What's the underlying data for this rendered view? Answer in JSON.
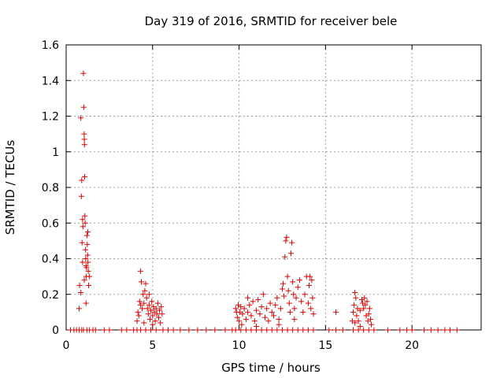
{
  "chart_data": {
    "type": "scatter",
    "title": "Day 319 of 2016, SRMTID for receiver bele",
    "xlabel": "GPS time / hours",
    "ylabel": "SRMTID / TECUs",
    "xlim": [
      0,
      24
    ],
    "ylim": [
      0,
      1.6
    ],
    "x_ticks": [
      0,
      5,
      10,
      15,
      20
    ],
    "x_tick_labels": [
      "0",
      "5",
      "10",
      "15",
      "20"
    ],
    "y_ticks": [
      0,
      0.2,
      0.4,
      0.6,
      0.8,
      1.0,
      1.2,
      1.4,
      1.6
    ],
    "y_tick_labels": [
      "0",
      "0.2",
      "0.4",
      "0.6",
      "0.8",
      "1",
      "1.2",
      "1.4",
      "1.6"
    ],
    "grid": true,
    "marker": "+",
    "color": "#e00000",
    "series": [
      {
        "name": "SRMTID",
        "points": [
          [
            0.25,
            0
          ],
          [
            0.45,
            0
          ],
          [
            0.6,
            0
          ],
          [
            0.75,
            0
          ],
          [
            0.9,
            0
          ],
          [
            1.0,
            0
          ],
          [
            1.2,
            0
          ],
          [
            1.35,
            0
          ],
          [
            1.55,
            0
          ],
          [
            1.7,
            0
          ],
          [
            2.2,
            0
          ],
          [
            2.5,
            0
          ],
          [
            3.2,
            0
          ],
          [
            3.5,
            0
          ],
          [
            3.9,
            0
          ],
          [
            4.1,
            0
          ],
          [
            4.3,
            0
          ],
          [
            4.6,
            0
          ],
          [
            4.9,
            0
          ],
          [
            5.2,
            0
          ],
          [
            5.6,
            0
          ],
          [
            5.9,
            0
          ],
          [
            6.2,
            0
          ],
          [
            6.6,
            0
          ],
          [
            7.1,
            0
          ],
          [
            7.6,
            0
          ],
          [
            8.1,
            0
          ],
          [
            8.6,
            0
          ],
          [
            9.2,
            0
          ],
          [
            9.6,
            0
          ],
          [
            9.8,
            0
          ],
          [
            10.1,
            0
          ],
          [
            10.4,
            0
          ],
          [
            10.7,
            0
          ],
          [
            11.0,
            0
          ],
          [
            11.3,
            0
          ],
          [
            11.6,
            0
          ],
          [
            11.9,
            0
          ],
          [
            12.2,
            0
          ],
          [
            12.5,
            0
          ],
          [
            12.8,
            0
          ],
          [
            13.1,
            0
          ],
          [
            13.4,
            0
          ],
          [
            13.7,
            0
          ],
          [
            14.0,
            0
          ],
          [
            14.3,
            0
          ],
          [
            15.2,
            0
          ],
          [
            15.6,
            0
          ],
          [
            16.0,
            0
          ],
          [
            16.6,
            0
          ],
          [
            16.9,
            0
          ],
          [
            17.2,
            0
          ],
          [
            17.5,
            0
          ],
          [
            17.8,
            0
          ],
          [
            18.6,
            0
          ],
          [
            19.3,
            0
          ],
          [
            19.7,
            0
          ],
          [
            20.0,
            0
          ],
          [
            20.7,
            0
          ],
          [
            21.1,
            0
          ],
          [
            21.5,
            0
          ],
          [
            21.9,
            0
          ],
          [
            22.2,
            0
          ],
          [
            22.6,
            0
          ],
          [
            0.75,
            0.12
          ],
          [
            0.78,
            0.25
          ],
          [
            0.85,
            1.19
          ],
          [
            0.88,
            0.75
          ],
          [
            0.9,
            0.84
          ],
          [
            0.92,
            0.49
          ],
          [
            0.95,
            0.62
          ],
          [
            0.97,
            0.58
          ],
          [
            1.0,
            1.44
          ],
          [
            1.02,
            1.25
          ],
          [
            1.04,
            1.1
          ],
          [
            1.05,
            1.07
          ],
          [
            1.06,
            1.04
          ],
          [
            1.07,
            0.86
          ],
          [
            1.08,
            0.64
          ],
          [
            1.1,
            0.6
          ],
          [
            1.12,
            0.45
          ],
          [
            1.13,
            0.4
          ],
          [
            1.15,
            0.36
          ],
          [
            1.16,
            0.3
          ],
          [
            1.18,
            0.35
          ],
          [
            1.2,
            0.53
          ],
          [
            1.22,
            0.48
          ],
          [
            1.24,
            0.42
          ],
          [
            1.26,
            0.38
          ],
          [
            1.28,
            0.33
          ],
          [
            1.3,
            0.25
          ],
          [
            1.15,
            0.15
          ],
          [
            0.95,
            0.38
          ],
          [
            1.05,
            0.28
          ],
          [
            0.85,
            0.21
          ],
          [
            1.35,
            0.3
          ],
          [
            1.25,
            0.55
          ],
          [
            4.1,
            0.05
          ],
          [
            4.15,
            0.1
          ],
          [
            4.2,
            0.08
          ],
          [
            4.25,
            0.16
          ],
          [
            4.3,
            0.33
          ],
          [
            4.35,
            0.27
          ],
          [
            4.4,
            0.12
          ],
          [
            4.45,
            0.2
          ],
          [
            4.5,
            0.15
          ],
          [
            4.55,
            0.22
          ],
          [
            4.6,
            0.26
          ],
          [
            4.65,
            0.18
          ],
          [
            4.7,
            0.12
          ],
          [
            4.75,
            0.09
          ],
          [
            4.8,
            0.14
          ],
          [
            4.85,
            0.06
          ],
          [
            4.9,
            0.11
          ],
          [
            4.95,
            0.16
          ],
          [
            5.0,
            0.08
          ],
          [
            5.05,
            0.13
          ],
          [
            5.1,
            0.1
          ],
          [
            5.15,
            0.05
          ],
          [
            5.2,
            0.12
          ],
          [
            5.25,
            0.09
          ],
          [
            5.3,
            0.15
          ],
          [
            5.35,
            0.07
          ],
          [
            5.4,
            0.11
          ],
          [
            5.45,
            0.04
          ],
          [
            5.5,
            0.13
          ],
          [
            5.55,
            0.09
          ],
          [
            4.5,
            0.04
          ],
          [
            4.8,
            0.2
          ],
          [
            5.0,
            0.03
          ],
          [
            4.3,
            0.14
          ],
          [
            9.8,
            0.12
          ],
          [
            9.85,
            0.1
          ],
          [
            9.9,
            0.07
          ],
          [
            9.95,
            0.14
          ],
          [
            10.0,
            0.05
          ],
          [
            10.05,
            0.1
          ],
          [
            10.1,
            0.13
          ],
          [
            10.15,
            0.03
          ],
          [
            10.2,
            0.09
          ],
          [
            10.3,
            0.12
          ],
          [
            10.4,
            0.06
          ],
          [
            10.5,
            0.1
          ],
          [
            10.6,
            0.14
          ],
          [
            10.7,
            0.08
          ],
          [
            10.8,
            0.16
          ],
          [
            10.9,
            0.05
          ],
          [
            11.0,
            0.11
          ],
          [
            11.1,
            0.17
          ],
          [
            11.2,
            0.09
          ],
          [
            11.3,
            0.13
          ],
          [
            11.4,
            0.2
          ],
          [
            11.5,
            0.07
          ],
          [
            11.6,
            0.12
          ],
          [
            11.7,
            0.05
          ],
          [
            11.8,
            0.15
          ],
          [
            11.9,
            0.1
          ],
          [
            12.0,
            0.08
          ],
          [
            12.1,
            0.14
          ],
          [
            12.2,
            0.18
          ],
          [
            12.3,
            0.06
          ],
          [
            12.4,
            0.12
          ],
          [
            12.5,
            0.23
          ],
          [
            12.55,
            0.26
          ],
          [
            12.6,
            0.19
          ],
          [
            12.65,
            0.41
          ],
          [
            12.7,
            0.5
          ],
          [
            12.75,
            0.52
          ],
          [
            12.8,
            0.3
          ],
          [
            12.85,
            0.22
          ],
          [
            12.9,
            0.15
          ],
          [
            12.95,
            0.1
          ],
          [
            13.0,
            0.43
          ],
          [
            13.05,
            0.49
          ],
          [
            13.1,
            0.27
          ],
          [
            13.15,
            0.2
          ],
          [
            13.2,
            0.12
          ],
          [
            13.3,
            0.18
          ],
          [
            13.4,
            0.24
          ],
          [
            13.5,
            0.28
          ],
          [
            13.6,
            0.16
          ],
          [
            13.7,
            0.1
          ],
          [
            13.8,
            0.2
          ],
          [
            13.9,
            0.3
          ],
          [
            14.0,
            0.15
          ],
          [
            14.05,
            0.25
          ],
          [
            14.1,
            0.3
          ],
          [
            14.15,
            0.12
          ],
          [
            14.2,
            0.28
          ],
          [
            14.25,
            0.18
          ],
          [
            14.3,
            0.09
          ],
          [
            13.2,
            0.06
          ],
          [
            12.3,
            0.03
          ],
          [
            11.0,
            0.02
          ],
          [
            10.5,
            0.18
          ],
          [
            15.6,
            0.1
          ],
          [
            16.55,
            0.05
          ],
          [
            16.6,
            0.1
          ],
          [
            16.65,
            0.14
          ],
          [
            16.7,
            0.21
          ],
          [
            16.75,
            0.18
          ],
          [
            16.8,
            0.08
          ],
          [
            16.85,
            0.12
          ],
          [
            16.9,
            0.05
          ],
          [
            17.0,
            0.11
          ],
          [
            17.1,
            0.17
          ],
          [
            17.15,
            0.15
          ],
          [
            17.2,
            0.12
          ],
          [
            17.25,
            0.18
          ],
          [
            17.3,
            0.14
          ],
          [
            17.35,
            0.08
          ],
          [
            17.4,
            0.16
          ],
          [
            17.45,
            0.05
          ],
          [
            17.5,
            0.09
          ],
          [
            17.55,
            0.12
          ],
          [
            17.6,
            0.06
          ],
          [
            17.65,
            0.03
          ],
          [
            16.7,
            0.04
          ],
          [
            17.0,
            0.02
          ]
        ]
      }
    ]
  }
}
